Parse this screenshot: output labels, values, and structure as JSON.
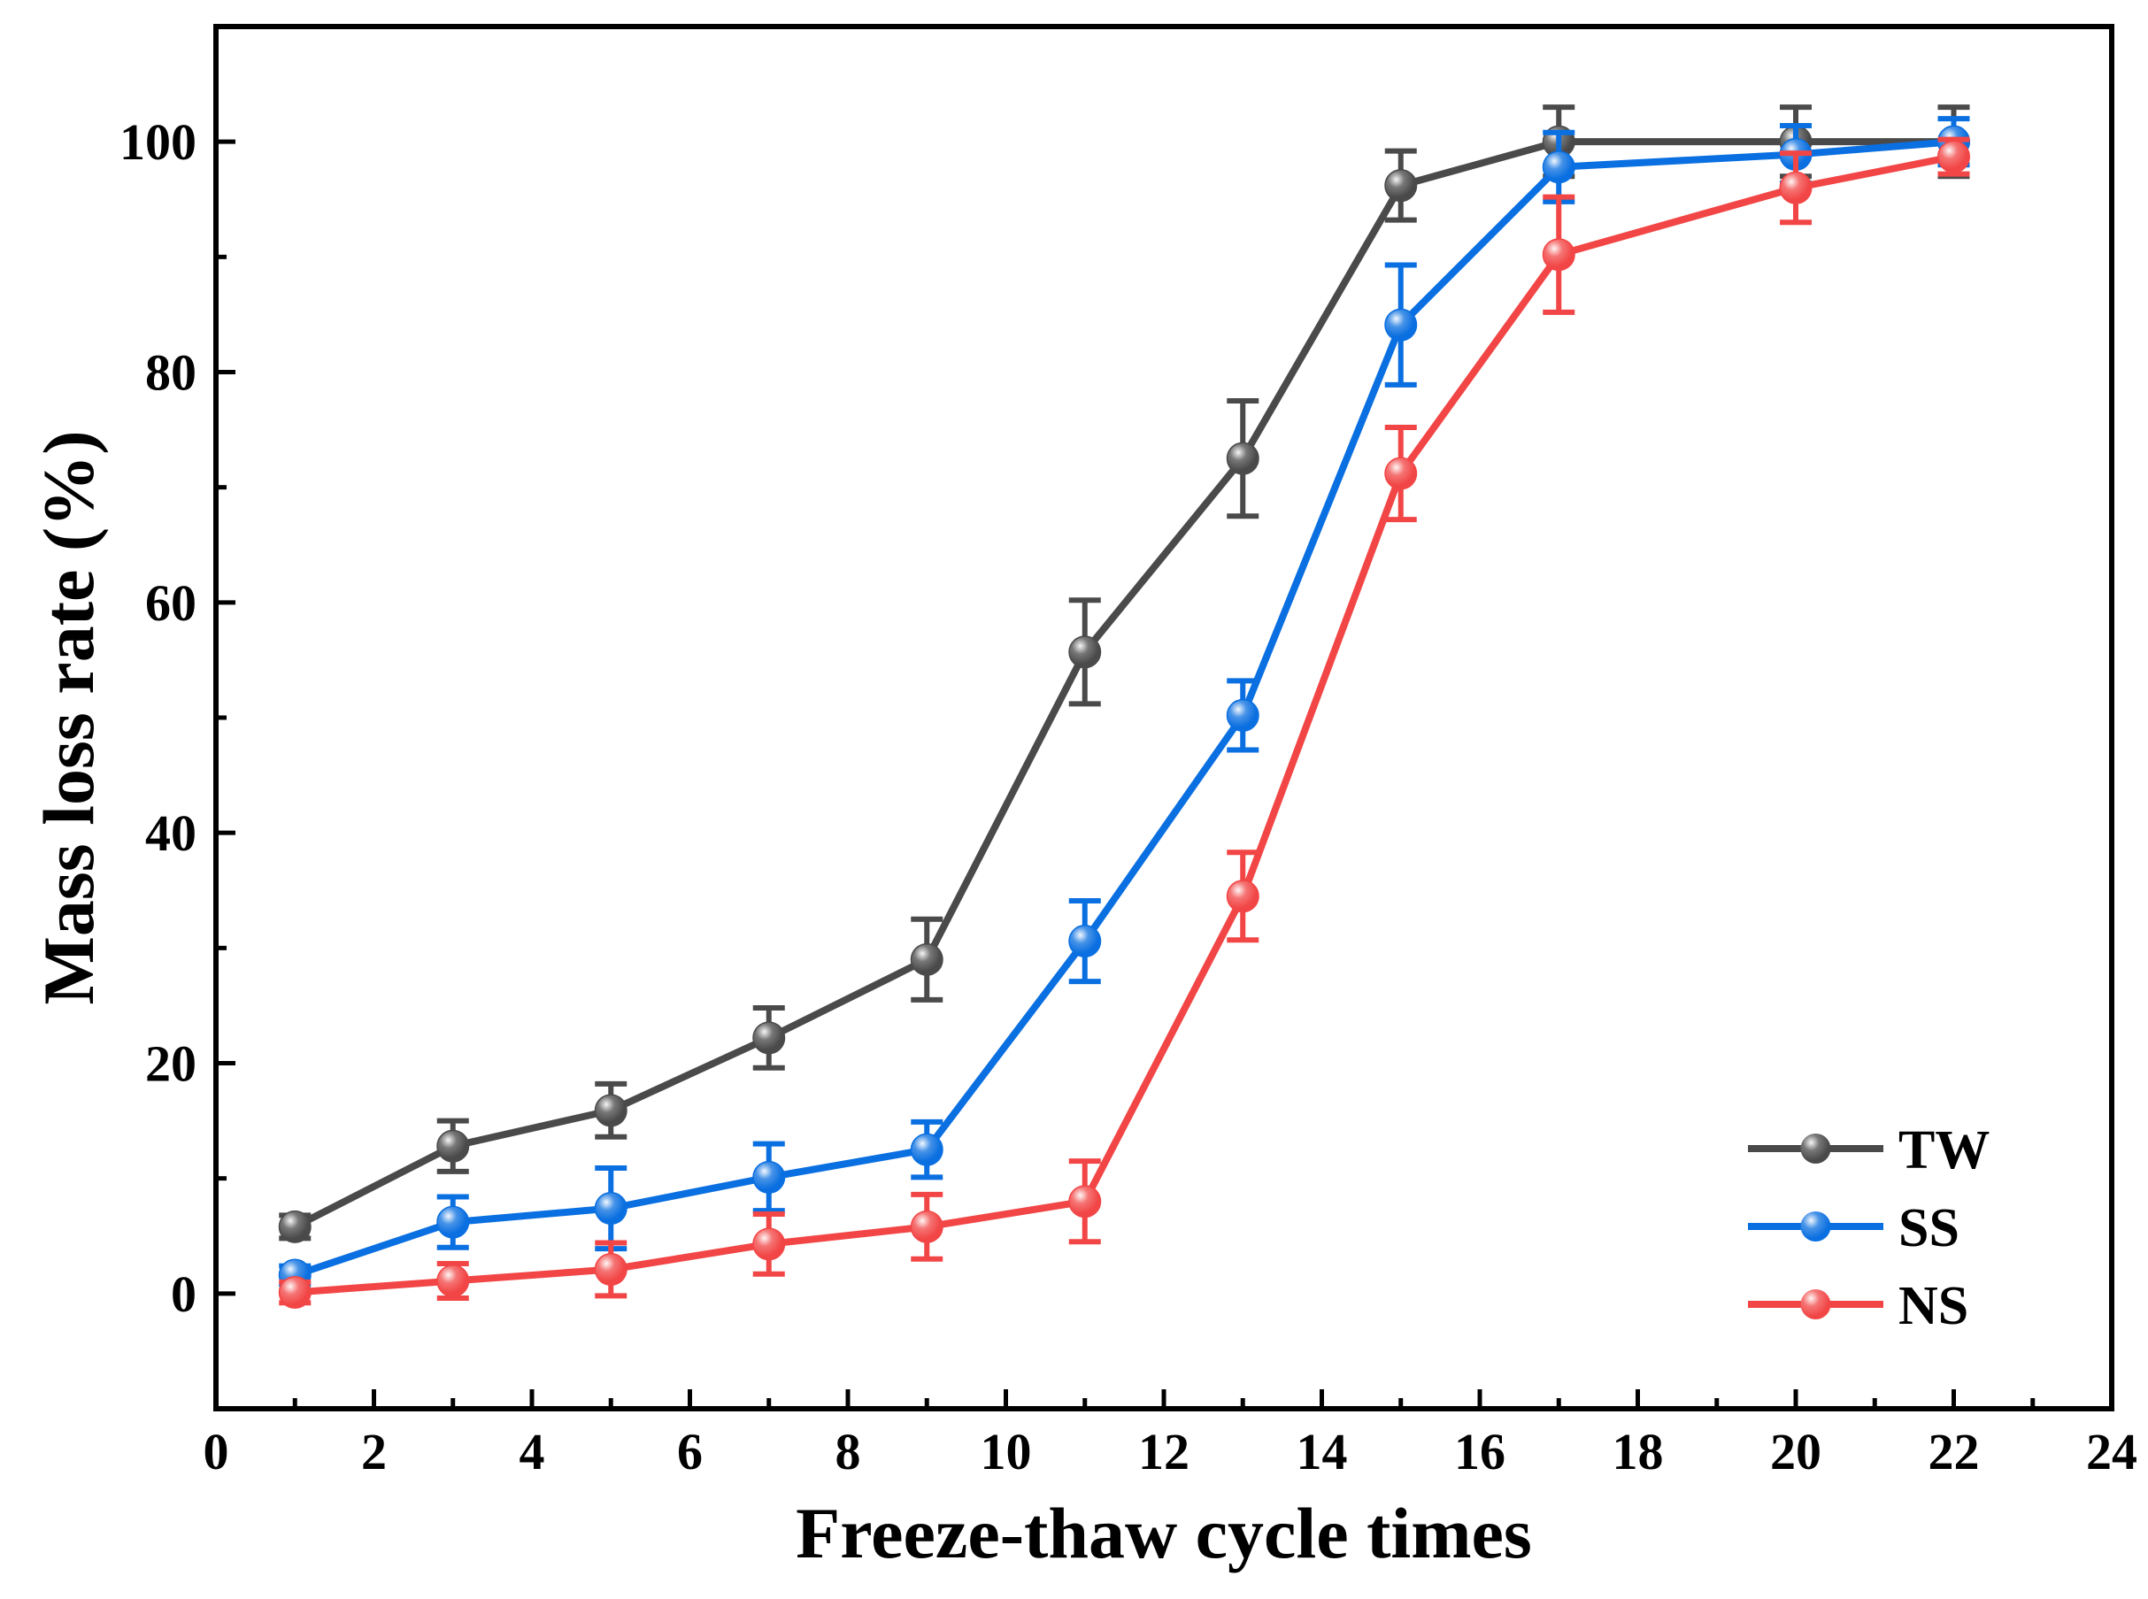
{
  "chart_data": {
    "type": "line",
    "title": "",
    "xlabel": "Freeze-thaw cycle times",
    "ylabel": "Mass loss rate (%)",
    "xlim": [
      0,
      24
    ],
    "ylim": [
      -10,
      110
    ],
    "xticks": [
      0,
      2,
      4,
      6,
      8,
      10,
      12,
      14,
      16,
      18,
      20,
      22,
      24
    ],
    "yticks": [
      0,
      20,
      40,
      60,
      80,
      100
    ],
    "grid": false,
    "legend_position": "bottom-right",
    "x": [
      1,
      3,
      5,
      7,
      9,
      11,
      13,
      15,
      17,
      20,
      22
    ],
    "series": [
      {
        "name": "TW",
        "color": "#4a4a4a",
        "values": [
          5.8,
          12.8,
          15.9,
          22.2,
          29.0,
          55.7,
          72.5,
          96.2,
          100.0,
          100.0,
          100.0
        ],
        "errors": [
          1.0,
          2.2,
          2.3,
          2.6,
          3.5,
          4.5,
          5.0,
          3.0,
          3.0,
          3.0,
          3.0
        ]
      },
      {
        "name": "SS",
        "color": "#0a6fe0",
        "values": [
          1.6,
          6.2,
          7.4,
          10.1,
          12.5,
          30.6,
          50.2,
          84.1,
          97.8,
          98.9,
          100.0
        ],
        "errors": [
          0.8,
          2.2,
          3.5,
          2.9,
          2.4,
          3.5,
          3.0,
          5.2,
          3.0,
          2.5,
          2.0
        ]
      },
      {
        "name": "NS",
        "color": "#f24646",
        "values": [
          0.1,
          1.1,
          2.1,
          4.3,
          5.8,
          8.0,
          34.5,
          71.2,
          90.2,
          96.0,
          98.7
        ],
        "errors": [
          0.9,
          1.5,
          2.3,
          2.6,
          2.8,
          3.5,
          3.8,
          4.0,
          5.0,
          3.0,
          1.5
        ]
      }
    ]
  }
}
